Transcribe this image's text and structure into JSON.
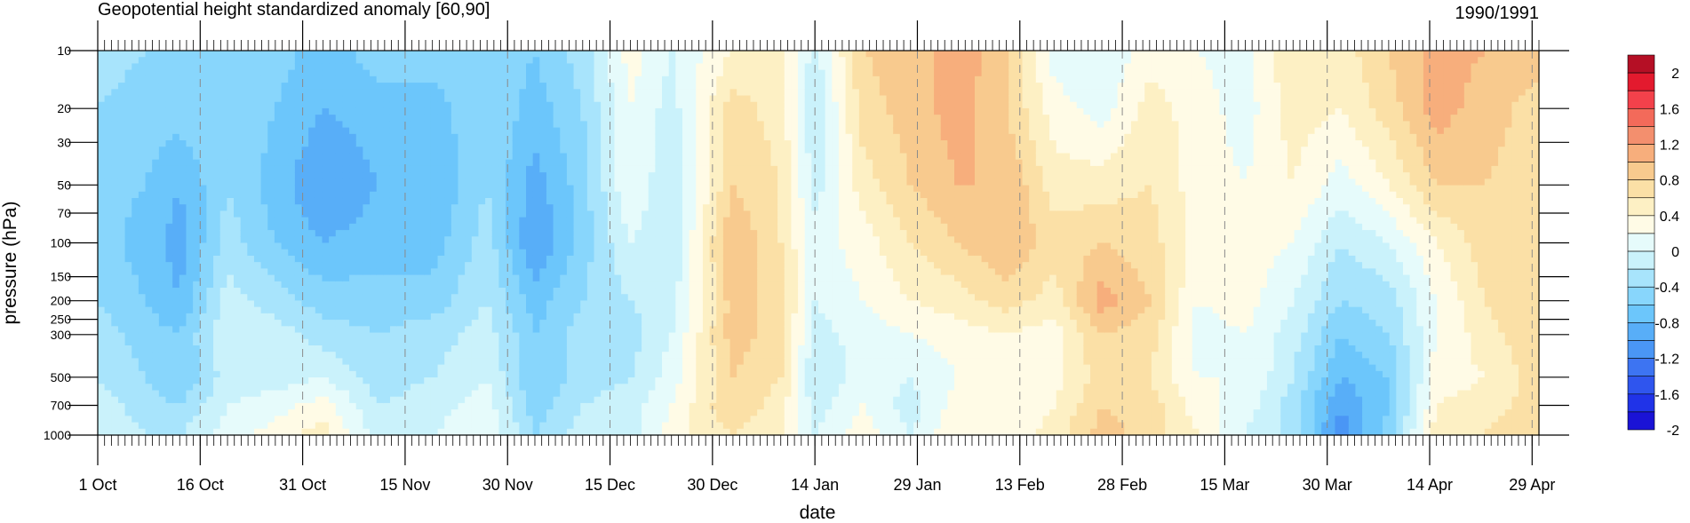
{
  "chart_data": {
    "type": "heatmap",
    "title": "Geopotential height standardized anomaly [60,90]",
    "subtitle_right": "1990/1991",
    "xlabel": "date",
    "ylabel": "pressure (hPa)",
    "y_scale": "log",
    "y_reversed": true,
    "ylim": [
      1000,
      10
    ],
    "x_range": [
      "1990-10-01",
      "1991-04-30"
    ],
    "y_ticks": [
      10,
      20,
      30,
      50,
      70,
      100,
      150,
      200,
      250,
      300,
      500,
      700,
      1000
    ],
    "x_tick_labels": [
      "1 Oct",
      "16 Oct",
      "31 Oct",
      "15 Nov",
      "30 Nov",
      "15 Dec",
      "30 Dec",
      "14 Jan",
      "29 Jan",
      "13 Feb",
      "28 Feb",
      "15 Mar",
      "30 Mar",
      "14 Apr",
      "29 Apr"
    ],
    "x_tick_dates": [
      "1990-10-01",
      "1990-10-16",
      "1990-10-31",
      "1990-11-15",
      "1990-11-30",
      "1990-12-15",
      "1990-12-30",
      "1991-01-14",
      "1991-01-29",
      "1991-02-13",
      "1991-02-28",
      "1991-03-15",
      "1991-03-30",
      "1991-04-14",
      "1991-04-29"
    ],
    "colorbar": {
      "levels": [
        -2,
        -1.8,
        -1.6,
        -1.4,
        -1.2,
        -1,
        -0.8,
        -0.6,
        -0.4,
        -0.2,
        0,
        0.2,
        0.4,
        0.6,
        0.8,
        1,
        1.2,
        1.4,
        1.6,
        1.8,
        2
      ],
      "labels": [
        "2",
        "1.6",
        "1.2",
        "0.8",
        "0.4",
        "0",
        "-0.4",
        "-0.8",
        "-1.2",
        "-1.6",
        "-2"
      ],
      "colors": [
        "#1a13d6",
        "#2033e8",
        "#2f55ee",
        "#3d74f2",
        "#4a96f5",
        "#58aef8",
        "#6cc6fb",
        "#88d6fc",
        "#a8e4fc",
        "#caf2fb",
        "#e6fbfb",
        "#fffbe6",
        "#fdf0c4",
        "#fbe0a6",
        "#f8ca8e",
        "#f7ae7c",
        "#f38f6e",
        "#f36a5a",
        "#f3414b",
        "#e31a2e",
        "#b50f25"
      ]
    },
    "profile_dates": [
      "1990-10-01",
      "1990-10-08",
      "1990-10-13",
      "1990-10-20",
      "1990-10-27",
      "1990-11-03",
      "1990-11-11",
      "1990-11-19",
      "1990-11-27",
      "1990-12-04",
      "1990-12-11",
      "1990-12-18",
      "1990-12-24",
      "1991-01-02",
      "1991-01-09",
      "1991-01-14",
      "1991-01-21",
      "1991-01-28",
      "1991-02-04",
      "1991-02-11",
      "1991-02-18",
      "1991-02-25",
      "1991-03-04",
      "1991-03-11",
      "1991-03-18",
      "1991-03-25",
      "1991-04-01",
      "1991-04-08",
      "1991-04-15",
      "1991-04-22",
      "1991-04-30"
    ],
    "profile_levels": [
      10,
      20,
      50,
      100,
      200,
      300,
      500,
      700,
      1000
    ],
    "anomaly_profiles": [
      [
        -0.5,
        -0.6,
        -0.7,
        -0.7,
        -0.6,
        -0.5,
        -0.4,
        -0.3,
        -0.2
      ],
      [
        -0.6,
        -0.7,
        -0.8,
        -0.9,
        -0.8,
        -0.7,
        -0.6,
        -0.5,
        -0.4
      ],
      [
        -0.6,
        -0.7,
        -1.0,
        -1.1,
        -1.0,
        -0.8,
        -0.8,
        -0.6,
        -0.4
      ],
      [
        -0.6,
        -0.6,
        -0.6,
        -0.5,
        -0.3,
        -0.2,
        -0.3,
        -0.2,
        -0.1
      ],
      [
        -0.7,
        -0.8,
        -0.9,
        -0.8,
        -0.5,
        -0.3,
        -0.3,
        -0.1,
        0.1
      ],
      [
        -0.9,
        -1.0,
        -1.2,
        -1.0,
        -0.7,
        -0.5,
        -0.2,
        0.1,
        0.3
      ],
      [
        -0.7,
        -0.9,
        -1.0,
        -0.9,
        -0.7,
        -0.6,
        -0.5,
        -0.4,
        -0.3
      ],
      [
        -0.7,
        -0.9,
        -1.0,
        -0.9,
        -0.7,
        -0.5,
        -0.4,
        -0.3,
        -0.2
      ],
      [
        -0.6,
        -0.6,
        -0.6,
        -0.5,
        -0.4,
        -0.3,
        -0.2,
        -0.1,
        0.0
      ],
      [
        -0.8,
        -0.9,
        -1.1,
        -1.2,
        -0.9,
        -0.8,
        -0.8,
        -0.7,
        -0.6
      ],
      [
        -0.5,
        -0.6,
        -0.7,
        -0.7,
        -0.6,
        -0.5,
        -0.5,
        -0.4,
        -0.3
      ],
      [
        0.1,
        0.0,
        0.0,
        -0.2,
        -0.4,
        -0.5,
        -0.4,
        -0.3,
        -0.3
      ],
      [
        -0.2,
        -0.3,
        -0.4,
        -0.4,
        -0.3,
        -0.2,
        -0.1,
        0.0,
        0.1
      ],
      [
        0.2,
        0.5,
        0.6,
        0.8,
        0.7,
        0.7,
        0.6,
        0.6,
        0.4
      ],
      [
        0.3,
        0.3,
        0.4,
        0.4,
        0.5,
        0.5,
        0.4,
        0.3,
        0.2
      ],
      [
        -0.3,
        -0.4,
        -0.3,
        -0.1,
        -0.2,
        -0.3,
        -0.4,
        -0.3,
        -0.2
      ],
      [
        0.6,
        0.5,
        0.3,
        0.1,
        0.0,
        -0.1,
        -0.1,
        0.0,
        0.1
      ],
      [
        0.7,
        0.7,
        0.6,
        0.4,
        0.2,
        0.0,
        -0.2,
        -0.3,
        -0.2
      ],
      [
        0.9,
        0.9,
        0.8,
        0.6,
        0.3,
        0.1,
        0.0,
        0.1,
        0.2
      ],
      [
        0.7,
        0.6,
        0.8,
        0.8,
        0.5,
        0.2,
        0.1,
        0.0,
        0.0
      ],
      [
        -0.1,
        0.1,
        0.3,
        0.5,
        0.3,
        0.1,
        0.1,
        0.2,
        0.3
      ],
      [
        -0.2,
        -0.1,
        0.3,
        0.6,
        0.9,
        0.6,
        0.5,
        0.6,
        0.7
      ],
      [
        0.1,
        0.3,
        0.4,
        0.5,
        0.6,
        0.5,
        0.4,
        0.5,
        0.5
      ],
      [
        0.0,
        0.1,
        0.1,
        0.1,
        0.0,
        -0.1,
        0.0,
        0.1,
        0.2
      ],
      [
        -0.1,
        -0.1,
        0.0,
        0.1,
        0.1,
        0.0,
        0.0,
        -0.1,
        -0.2
      ],
      [
        0.4,
        0.3,
        0.2,
        0.0,
        -0.2,
        -0.3,
        -0.4,
        -0.5,
        -0.5
      ],
      [
        0.3,
        0.2,
        -0.1,
        -0.4,
        -0.6,
        -0.8,
        -1.0,
        -1.2,
        -1.3
      ],
      [
        0.6,
        0.5,
        0.2,
        -0.2,
        -0.5,
        -0.6,
        -0.8,
        -0.8,
        -0.7
      ],
      [
        0.9,
        0.9,
        0.6,
        0.2,
        0.0,
        0.0,
        0.1,
        0.2,
        0.3
      ],
      [
        0.8,
        0.7,
        0.6,
        0.5,
        0.4,
        0.3,
        0.2,
        0.3,
        0.4
      ],
      [
        0.7,
        0.5,
        0.5,
        0.6,
        0.6,
        0.6,
        0.5,
        0.5,
        0.6
      ]
    ]
  }
}
